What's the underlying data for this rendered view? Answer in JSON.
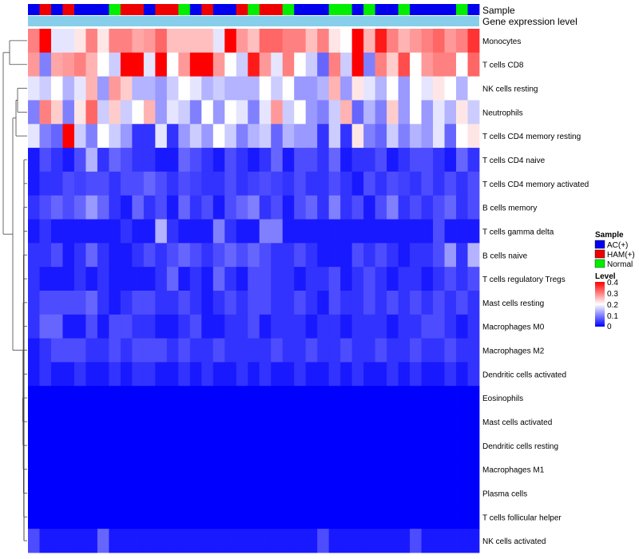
{
  "chart_data": {
    "type": "heatmap",
    "annotation_tracks": [
      "Sample",
      "Gene expression level"
    ],
    "rows": [
      "Monocytes",
      "T cells CD8",
      "NK cells resting",
      "Neutrophils",
      "T cells CD4 memory resting",
      "T cells CD4 naive",
      "T cells CD4 memory activated",
      "B cells memory",
      "T cells gamma delta",
      "B cells naive",
      "T cells regulatory  Tregs",
      "Mast cells resting",
      "Macrophages M0",
      "Macrophages M2",
      "Dendritic cells activated",
      "Eosinophils",
      "Mast cells activated",
      "Dendritic cells resting",
      "Macrophages M1",
      "Plasma cells",
      "T cells follicular helper",
      "NK cells activated"
    ],
    "sample_groups": [
      "AC(+)",
      "HAM(+)",
      "AC(+)",
      "HAM(+)",
      "AC(+)",
      "AC(+)",
      "AC(+)",
      "Normal",
      "HAM(+)",
      "HAM(+)",
      "AC(+)",
      "HAM(+)",
      "HAM(+)",
      "Normal",
      "AC(+)",
      "HAM(+)",
      "AC(+)",
      "AC(+)",
      "HAM(+)",
      "Normal",
      "HAM(+)",
      "HAM(+)",
      "Normal",
      "AC(+)",
      "AC(+)",
      "AC(+)",
      "Normal",
      "Normal",
      "AC(+)",
      "Normal",
      "AC(+)",
      "AC(+)",
      "Normal",
      "AC(+)",
      "AC(+)",
      "AC(+)",
      "AC(+)",
      "Normal",
      "AC(+)"
    ],
    "values": [
      [
        0.3,
        0.4,
        0.18,
        0.18,
        0.22,
        0.3,
        0.22,
        0.3,
        0.3,
        0.27,
        0.28,
        0.32,
        0.25,
        0.25,
        0.25,
        0.25,
        0.18,
        0.4,
        0.28,
        0.25,
        0.32,
        0.32,
        0.3,
        0.3,
        0.25,
        0.3,
        0.22,
        0.2,
        0.4,
        0.26,
        0.38,
        0.3,
        0.26,
        0.28,
        0.3,
        0.32,
        0.28,
        0.3,
        0.36
      ],
      [
        0.28,
        0.1,
        0.27,
        0.28,
        0.3,
        0.26,
        0.2,
        0.16,
        0.4,
        0.4,
        0.18,
        0.4,
        0.2,
        0.28,
        0.4,
        0.4,
        0.28,
        0.2,
        0.16,
        0.38,
        0.28,
        0.18,
        0.3,
        0.2,
        0.16,
        0.08,
        0.3,
        0.16,
        0.4,
        0.1,
        0.3,
        0.24,
        0.34,
        0.2,
        0.28,
        0.3,
        0.3,
        0.2,
        0.32
      ],
      [
        0.18,
        0.16,
        0.2,
        0.14,
        0.18,
        0.26,
        0.12,
        0.28,
        0.24,
        0.14,
        0.14,
        0.12,
        0.16,
        0.2,
        0.18,
        0.14,
        0.16,
        0.14,
        0.14,
        0.14,
        0.2,
        0.16,
        0.2,
        0.12,
        0.12,
        0.14,
        0.26,
        0.12,
        0.22,
        0.18,
        0.14,
        0.2,
        0.12,
        0.2,
        0.18,
        0.22,
        0.2,
        0.14,
        0.2
      ],
      [
        0.1,
        0.3,
        0.24,
        0.1,
        0.22,
        0.32,
        0.16,
        0.24,
        0.16,
        0.2,
        0.26,
        0.12,
        0.18,
        0.16,
        0.1,
        0.2,
        0.12,
        0.2,
        0.18,
        0.1,
        0.18,
        0.28,
        0.16,
        0.2,
        0.12,
        0.1,
        0.16,
        0.26,
        0.08,
        0.14,
        0.1,
        0.24,
        0.12,
        0.2,
        0.12,
        0.18,
        0.14,
        0.22,
        0.16
      ],
      [
        0.18,
        0.1,
        0.08,
        0.4,
        0.16,
        0.1,
        0.2,
        0.16,
        0.12,
        0.04,
        0.04,
        0.18,
        0.04,
        0.12,
        0.16,
        0.12,
        0.2,
        0.16,
        0.1,
        0.14,
        0.16,
        0.08,
        0.14,
        0.12,
        0.12,
        0.04,
        0.16,
        0.04,
        0.22,
        0.1,
        0.08,
        0.16,
        0.1,
        0.14,
        0.12,
        0.18,
        0.08,
        0.2,
        0.22
      ],
      [
        0.02,
        0.06,
        0.04,
        0.02,
        0.06,
        0.14,
        0.04,
        0.08,
        0.06,
        0.04,
        0.04,
        0.02,
        0.02,
        0.08,
        0.06,
        0.04,
        0.02,
        0.06,
        0.04,
        0.02,
        0.04,
        0.08,
        0.02,
        0.06,
        0.06,
        0.04,
        0.08,
        0.02,
        0.04,
        0.04,
        0.06,
        0.02,
        0.04,
        0.06,
        0.06,
        0.04,
        0.02,
        0.08,
        0.04
      ],
      [
        0.02,
        0.04,
        0.04,
        0.06,
        0.05,
        0.06,
        0.06,
        0.04,
        0.06,
        0.06,
        0.08,
        0.06,
        0.04,
        0.06,
        0.05,
        0.04,
        0.04,
        0.06,
        0.04,
        0.05,
        0.06,
        0.05,
        0.04,
        0.06,
        0.04,
        0.04,
        0.06,
        0.04,
        0.02,
        0.06,
        0.04,
        0.06,
        0.05,
        0.04,
        0.06,
        0.04,
        0.06,
        0.04,
        0.06
      ],
      [
        0.04,
        0.06,
        0.08,
        0.06,
        0.08,
        0.12,
        0.08,
        0.04,
        0.02,
        0.08,
        0.04,
        0.06,
        0.02,
        0.08,
        0.04,
        0.06,
        0.02,
        0.06,
        0.08,
        0.1,
        0.04,
        0.06,
        0.02,
        0.06,
        0.08,
        0.04,
        0.1,
        0.04,
        0.06,
        0.02,
        0.06,
        0.1,
        0.04,
        0.06,
        0.04,
        0.06,
        0.08,
        0.04,
        0.06
      ],
      [
        0.02,
        0.04,
        0.02,
        0.02,
        0.02,
        0.02,
        0.02,
        0.02,
        0.04,
        0.02,
        0.02,
        0.14,
        0.04,
        0.02,
        0.02,
        0.02,
        0.1,
        0.04,
        0.02,
        0.02,
        0.1,
        0.1,
        0.02,
        0.02,
        0.02,
        0.02,
        0.02,
        0.02,
        0.02,
        0.02,
        0.02,
        0.02,
        0.02,
        0.02,
        0.02,
        0.06,
        0.02,
        0.02,
        0.02
      ],
      [
        0.04,
        0.04,
        0.06,
        0.02,
        0.04,
        0.08,
        0.04,
        0.02,
        0.02,
        0.04,
        0.06,
        0.04,
        0.06,
        0.08,
        0.06,
        0.04,
        0.06,
        0.08,
        0.06,
        0.08,
        0.06,
        0.04,
        0.04,
        0.06,
        0.04,
        0.02,
        0.02,
        0.02,
        0.06,
        0.04,
        0.06,
        0.04,
        0.02,
        0.04,
        0.04,
        0.06,
        0.12,
        0.04,
        0.14
      ],
      [
        0.04,
        0.02,
        0.02,
        0.02,
        0.04,
        0.02,
        0.04,
        0.02,
        0.02,
        0.02,
        0.02,
        0.04,
        0.08,
        0.02,
        0.04,
        0.02,
        0.08,
        0.04,
        0.02,
        0.06,
        0.06,
        0.04,
        0.04,
        0.02,
        0.04,
        0.04,
        0.06,
        0.02,
        0.04,
        0.06,
        0.04,
        0.02,
        0.04,
        0.04,
        0.02,
        0.04,
        0.06,
        0.04,
        0.06
      ],
      [
        0.04,
        0.06,
        0.06,
        0.06,
        0.06,
        0.08,
        0.04,
        0.02,
        0.04,
        0.06,
        0.06,
        0.04,
        0.04,
        0.06,
        0.04,
        0.02,
        0.04,
        0.06,
        0.04,
        0.06,
        0.06,
        0.04,
        0.04,
        0.06,
        0.04,
        0.02,
        0.06,
        0.04,
        0.04,
        0.06,
        0.04,
        0.06,
        0.04,
        0.06,
        0.04,
        0.06,
        0.04,
        0.06,
        0.04
      ],
      [
        0.04,
        0.08,
        0.08,
        0.02,
        0.02,
        0.06,
        0.02,
        0.06,
        0.06,
        0.04,
        0.04,
        0.02,
        0.02,
        0.04,
        0.06,
        0.02,
        0.02,
        0.04,
        0.04,
        0.06,
        0.02,
        0.04,
        0.04,
        0.04,
        0.02,
        0.04,
        0.04,
        0.02,
        0.04,
        0.04,
        0.04,
        0.02,
        0.04,
        0.04,
        0.06,
        0.06,
        0.04,
        0.02,
        0.04
      ],
      [
        0.02,
        0.04,
        0.06,
        0.06,
        0.06,
        0.04,
        0.04,
        0.06,
        0.04,
        0.06,
        0.06,
        0.06,
        0.04,
        0.06,
        0.04,
        0.04,
        0.06,
        0.04,
        0.04,
        0.04,
        0.04,
        0.06,
        0.04,
        0.04,
        0.06,
        0.04,
        0.04,
        0.06,
        0.04,
        0.04,
        0.06,
        0.04,
        0.04,
        0.06,
        0.04,
        0.04,
        0.06,
        0.04,
        0.04
      ],
      [
        0.02,
        0.04,
        0.02,
        0.02,
        0.04,
        0.02,
        0.02,
        0.04,
        0.02,
        0.04,
        0.04,
        0.02,
        0.02,
        0.04,
        0.02,
        0.04,
        0.02,
        0.02,
        0.04,
        0.02,
        0.04,
        0.02,
        0.02,
        0.04,
        0.02,
        0.02,
        0.04,
        0.02,
        0.04,
        0.02,
        0.02,
        0.04,
        0.02,
        0.04,
        0.02,
        0.02,
        0.04,
        0.02,
        0.04
      ],
      [
        0.0,
        0.0,
        0.0,
        0.0,
        0.0,
        0.0,
        0.0,
        0.0,
        0.0,
        0.0,
        0.0,
        0.0,
        0.0,
        0.0,
        0.0,
        0.0,
        0.0,
        0.0,
        0.0,
        0.0,
        0.0,
        0.0,
        0.0,
        0.0,
        0.0,
        0.0,
        0.0,
        0.0,
        0.0,
        0.0,
        0.0,
        0.0,
        0.0,
        0.0,
        0.0,
        0.0,
        0.0,
        0.0,
        0.0
      ],
      [
        0.0,
        0.0,
        0.0,
        0.0,
        0.0,
        0.0,
        0.0,
        0.0,
        0.0,
        0.0,
        0.0,
        0.0,
        0.0,
        0.0,
        0.0,
        0.0,
        0.0,
        0.0,
        0.0,
        0.0,
        0.0,
        0.0,
        0.0,
        0.0,
        0.0,
        0.0,
        0.0,
        0.0,
        0.0,
        0.0,
        0.0,
        0.0,
        0.0,
        0.0,
        0.0,
        0.0,
        0.0,
        0.0,
        0.0
      ],
      [
        0.0,
        0.0,
        0.0,
        0.0,
        0.0,
        0.0,
        0.0,
        0.0,
        0.0,
        0.0,
        0.0,
        0.0,
        0.0,
        0.0,
        0.0,
        0.0,
        0.0,
        0.0,
        0.0,
        0.0,
        0.0,
        0.0,
        0.0,
        0.0,
        0.0,
        0.0,
        0.0,
        0.0,
        0.0,
        0.0,
        0.0,
        0.0,
        0.0,
        0.0,
        0.0,
        0.0,
        0.0,
        0.0,
        0.0
      ],
      [
        0.0,
        0.0,
        0.0,
        0.0,
        0.0,
        0.0,
        0.0,
        0.0,
        0.0,
        0.0,
        0.0,
        0.0,
        0.0,
        0.0,
        0.0,
        0.0,
        0.0,
        0.0,
        0.0,
        0.0,
        0.0,
        0.0,
        0.0,
        0.0,
        0.0,
        0.0,
        0.0,
        0.0,
        0.0,
        0.0,
        0.0,
        0.0,
        0.0,
        0.0,
        0.0,
        0.0,
        0.0,
        0.0,
        0.0
      ],
      [
        0.0,
        0.0,
        0.0,
        0.0,
        0.0,
        0.0,
        0.0,
        0.0,
        0.0,
        0.0,
        0.0,
        0.0,
        0.0,
        0.0,
        0.0,
        0.0,
        0.0,
        0.0,
        0.0,
        0.0,
        0.0,
        0.0,
        0.0,
        0.0,
        0.0,
        0.0,
        0.0,
        0.0,
        0.0,
        0.0,
        0.0,
        0.0,
        0.0,
        0.0,
        0.0,
        0.0,
        0.0,
        0.0,
        0.0
      ],
      [
        0.0,
        0.0,
        0.0,
        0.0,
        0.0,
        0.0,
        0.0,
        0.0,
        0.0,
        0.0,
        0.0,
        0.0,
        0.0,
        0.0,
        0.0,
        0.0,
        0.0,
        0.0,
        0.0,
        0.0,
        0.0,
        0.0,
        0.0,
        0.0,
        0.0,
        0.0,
        0.0,
        0.0,
        0.0,
        0.0,
        0.0,
        0.0,
        0.0,
        0.0,
        0.0,
        0.0,
        0.0,
        0.0,
        0.0
      ],
      [
        0.06,
        0.02,
        0.02,
        0.02,
        0.02,
        0.02,
        0.08,
        0.02,
        0.02,
        0.02,
        0.02,
        0.02,
        0.02,
        0.02,
        0.02,
        0.02,
        0.02,
        0.02,
        0.02,
        0.02,
        0.02,
        0.02,
        0.02,
        0.02,
        0.02,
        0.06,
        0.02,
        0.02,
        0.02,
        0.02,
        0.02,
        0.02,
        0.02,
        0.06,
        0.02,
        0.02,
        0.02,
        0.02,
        0.02
      ]
    ],
    "legend_sample": {
      "title": "Sample",
      "entries": [
        {
          "label": "AC(+)",
          "color": "#0000ee"
        },
        {
          "label": "HAM(+)",
          "color": "#ee0000"
        },
        {
          "label": "Normal",
          "color": "#00ee00"
        }
      ]
    },
    "legend_level": {
      "title": "Level",
      "ticks": [
        "0.4",
        "0.3",
        "0.2",
        "0.1",
        "0"
      ],
      "range": [
        0,
        0.4
      ]
    },
    "colors": {
      "low": "#0000ff",
      "mid": "#ffffff",
      "high": "#ff0000",
      "gene_expression_track": "#87ceeb"
    }
  }
}
